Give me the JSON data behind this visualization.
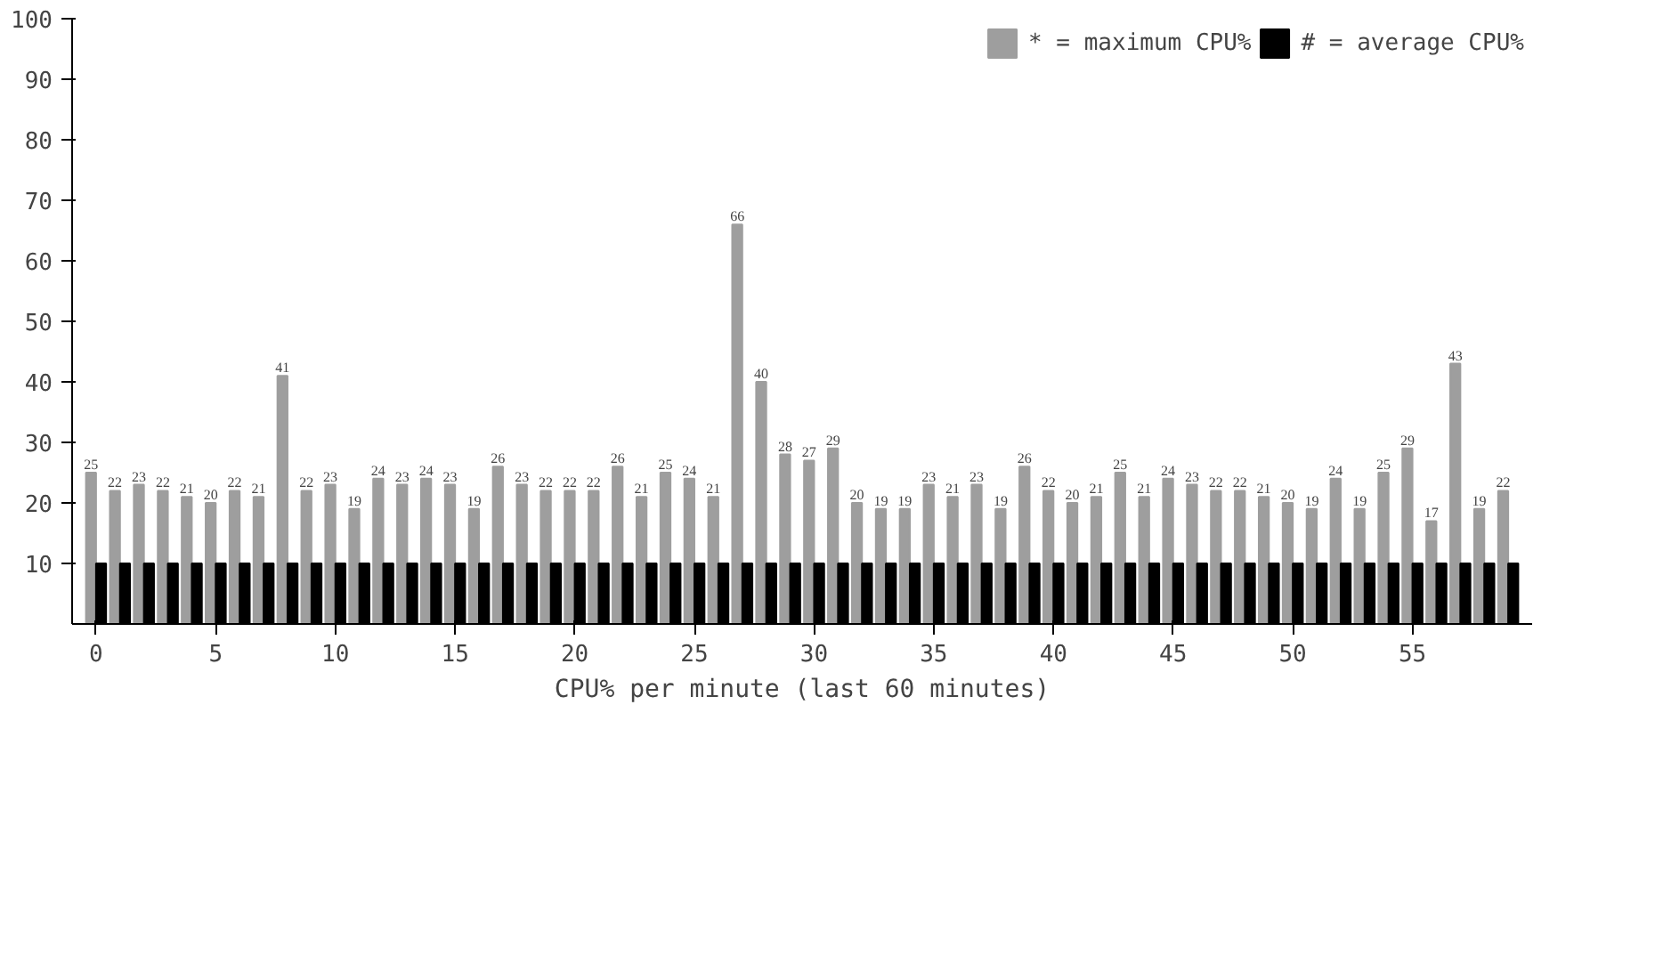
{
  "chart_data": {
    "type": "bar",
    "xlabel": "CPU% per minute (last 60 minutes)",
    "x": [
      0,
      1,
      2,
      3,
      4,
      5,
      6,
      7,
      8,
      9,
      10,
      11,
      12,
      13,
      14,
      15,
      16,
      17,
      18,
      19,
      20,
      21,
      22,
      23,
      24,
      25,
      26,
      27,
      28,
      29,
      30,
      31,
      32,
      33,
      34,
      35,
      36,
      37,
      38,
      39,
      40,
      41,
      42,
      43,
      44,
      45,
      46,
      47,
      48,
      49,
      50,
      51,
      52,
      53,
      54,
      55,
      56,
      57,
      58,
      59
    ],
    "series": [
      {
        "name": "* = maximum CPU%",
        "color": "#9e9e9e",
        "values": [
          25,
          22,
          23,
          22,
          21,
          20,
          22,
          21,
          41,
          22,
          23,
          19,
          24,
          23,
          24,
          23,
          19,
          26,
          23,
          22,
          22,
          22,
          26,
          21,
          25,
          24,
          21,
          66,
          40,
          28,
          27,
          29,
          20,
          19,
          19,
          23,
          21,
          23,
          19,
          26,
          22,
          20,
          21,
          25,
          21,
          24,
          23,
          22,
          22,
          21,
          20,
          19,
          24,
          19,
          25,
          29,
          17,
          43,
          19,
          22
        ],
        "data_labels": true
      },
      {
        "name": "# = average CPU%",
        "color": "#000000",
        "values": [
          10,
          10,
          10,
          10,
          10,
          10,
          10,
          10,
          10,
          10,
          10,
          10,
          10,
          10,
          10,
          10,
          10,
          10,
          10,
          10,
          10,
          10,
          10,
          10,
          10,
          10,
          10,
          10,
          10,
          10,
          10,
          10,
          10,
          10,
          10,
          10,
          10,
          10,
          10,
          10,
          10,
          10,
          10,
          10,
          10,
          10,
          10,
          10,
          10,
          10,
          10,
          10,
          10,
          10,
          10,
          10,
          10,
          10,
          10,
          10
        ]
      }
    ],
    "xlim": [
      -1,
      60
    ],
    "xticks": [
      0,
      5,
      10,
      15,
      20,
      25,
      30,
      35,
      40,
      45,
      50,
      55
    ],
    "ylim": [
      0,
      100
    ],
    "yticks": [
      10,
      20,
      30,
      40,
      50,
      60,
      70,
      80,
      90,
      100
    ],
    "grid": false,
    "legend": "top right"
  }
}
